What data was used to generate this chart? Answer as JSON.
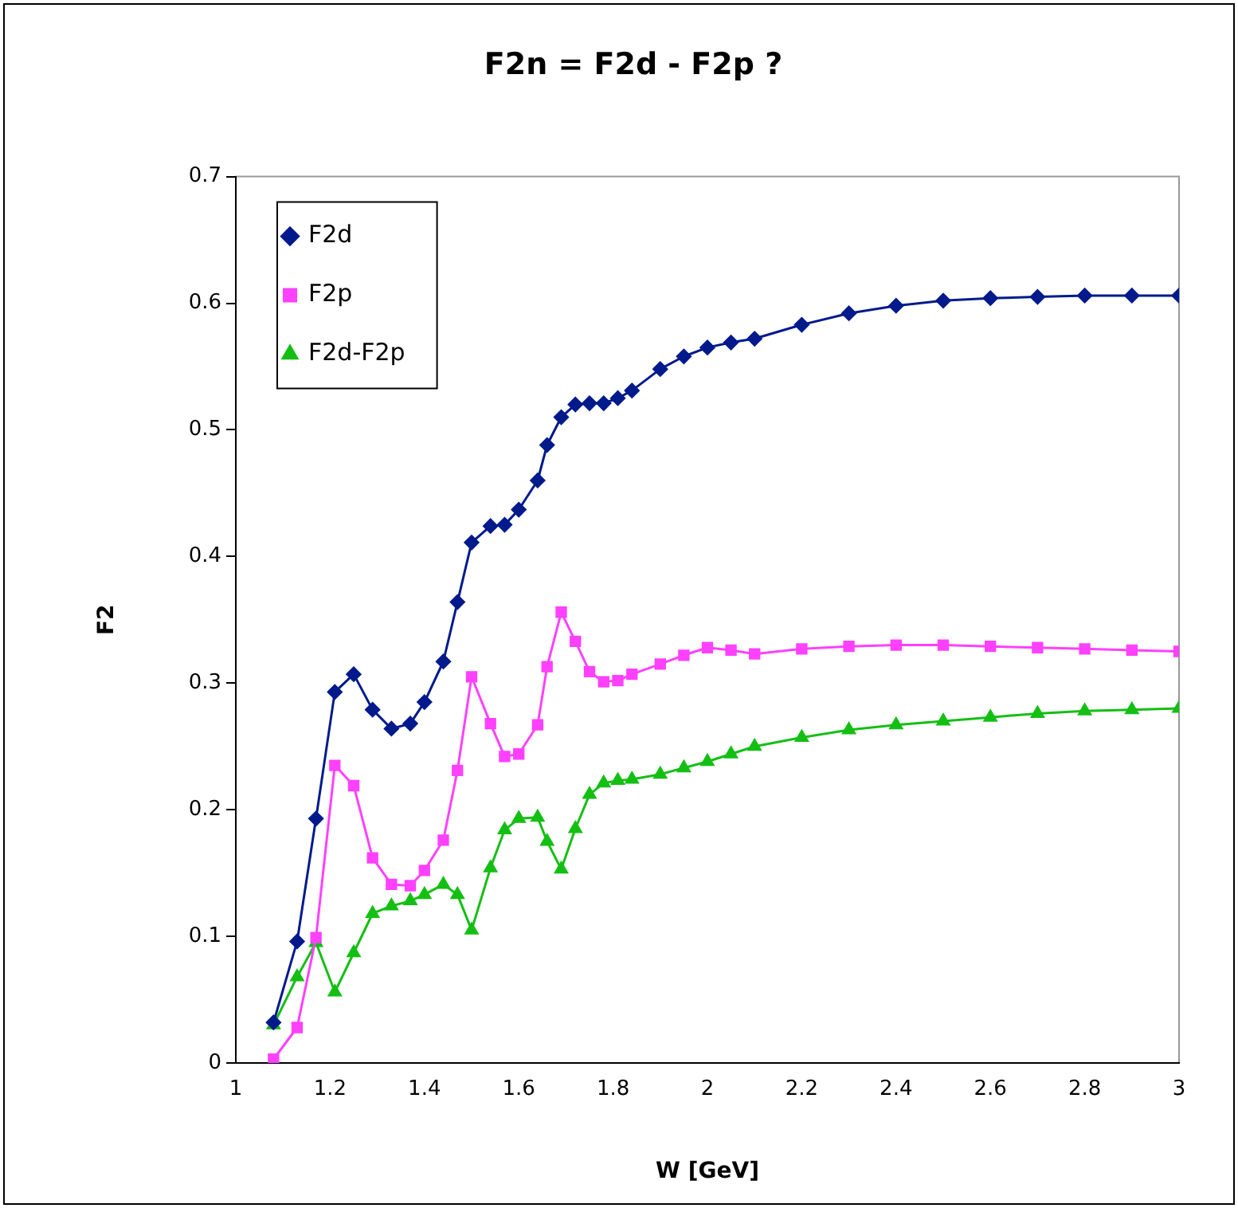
{
  "chart_data": {
    "type": "line",
    "title": "F2n = F2d - F2p ?",
    "xlabel": "W [GeV]",
    "ylabel": "F2",
    "x": [
      1.08,
      1.13,
      1.17,
      1.21,
      1.25,
      1.29,
      1.33,
      1.37,
      1.4,
      1.44,
      1.47,
      1.5,
      1.54,
      1.57,
      1.6,
      1.64,
      1.66,
      1.69,
      1.72,
      1.75,
      1.78,
      1.81,
      1.84,
      1.9,
      1.95,
      2.0,
      2.05,
      2.1,
      2.2,
      2.3,
      2.4,
      2.5,
      2.6,
      2.7,
      2.8,
      2.9,
      3.0
    ],
    "series": [
      {
        "name": "F2d",
        "color": "#001a8c",
        "marker": "diamond",
        "values": [
          0.032,
          0.096,
          0.193,
          0.293,
          0.307,
          0.279,
          0.264,
          0.268,
          0.285,
          0.317,
          0.364,
          0.411,
          0.424,
          0.425,
          0.437,
          0.46,
          0.488,
          0.51,
          0.52,
          0.521,
          0.521,
          0.525,
          0.531,
          0.548,
          0.558,
          0.565,
          0.569,
          0.572,
          0.583,
          0.592,
          0.598,
          0.602,
          0.604,
          0.605,
          0.606,
          0.606,
          0.606
        ]
      },
      {
        "name": "F2p",
        "color": "#ff40ff",
        "marker": "square",
        "values": [
          0.003,
          0.028,
          0.099,
          0.235,
          0.219,
          0.162,
          0.141,
          0.14,
          0.152,
          0.176,
          0.231,
          0.305,
          0.268,
          0.242,
          0.244,
          0.267,
          0.313,
          0.356,
          0.333,
          0.309,
          0.301,
          0.302,
          0.307,
          0.315,
          0.322,
          0.328,
          0.326,
          0.323,
          0.327,
          0.329,
          0.33,
          0.33,
          0.329,
          0.328,
          0.327,
          0.326,
          0.325
        ]
      },
      {
        "name": "F2d-F2p",
        "color": "#14bf14",
        "marker": "triangle",
        "values": [
          0.03,
          0.068,
          0.095,
          0.056,
          0.087,
          0.118,
          0.124,
          0.128,
          0.133,
          0.141,
          0.133,
          0.105,
          0.154,
          0.184,
          0.193,
          0.194,
          0.175,
          0.153,
          0.185,
          0.212,
          0.221,
          0.223,
          0.224,
          0.228,
          0.233,
          0.238,
          0.244,
          0.25,
          0.257,
          0.263,
          0.267,
          0.27,
          0.273,
          0.276,
          0.278,
          0.279,
          0.28
        ]
      }
    ],
    "xlim": [
      1,
      3
    ],
    "xticks": [
      1,
      1.2,
      1.4,
      1.6,
      1.8,
      2,
      2.2,
      2.4,
      2.6,
      2.8,
      3
    ],
    "ylim": [
      0,
      0.7
    ],
    "yticks": [
      0,
      0.1,
      0.2,
      0.3,
      0.4,
      0.5,
      0.6,
      0.7
    ],
    "grid": false,
    "legend": "top left",
    "line_style": "solid"
  }
}
